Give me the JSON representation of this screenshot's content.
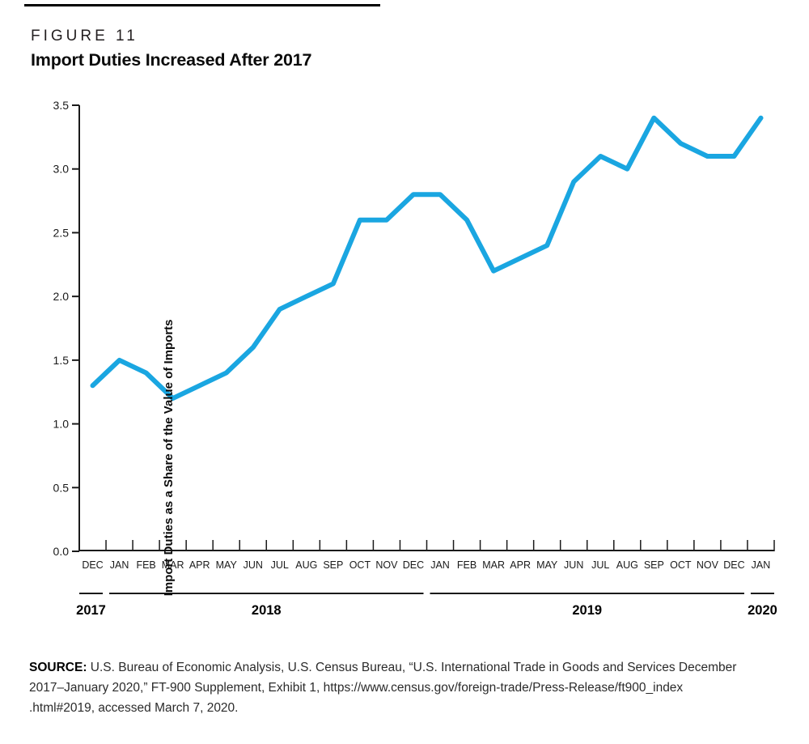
{
  "figure_label": "FIGURE 11",
  "title": "Import Duties Increased After 2017",
  "chart_data": {
    "type": "line",
    "title": "Import Duties Increased After 2017",
    "xlabel": "",
    "ylabel": "Import Duties as a Share of the Value of Imports",
    "ylim": [
      0,
      3.5
    ],
    "ytick_step": 0.5,
    "yticks": [
      "0.0",
      "0.5",
      "1.0",
      "1.5",
      "2.0",
      "2.5",
      "3.0",
      "3.5"
    ],
    "grid": false,
    "legend": false,
    "line_color": "#1aa6e1",
    "axis_color": "#1a1a1a",
    "text_color": "#1a1a1a",
    "categories": [
      "DEC",
      "JAN",
      "FEB",
      "MAR",
      "APR",
      "MAY",
      "JUN",
      "JUL",
      "AUG",
      "SEP",
      "OCT",
      "NOV",
      "DEC",
      "JAN",
      "FEB",
      "MAR",
      "APR",
      "MAY",
      "JUN",
      "JUL",
      "AUG",
      "SEP",
      "OCT",
      "NOV",
      "DEC",
      "JAN"
    ],
    "values": [
      1.3,
      1.5,
      1.4,
      1.2,
      1.3,
      1.4,
      1.6,
      1.9,
      2.0,
      2.1,
      2.6,
      2.6,
      2.8,
      2.8,
      2.6,
      2.2,
      2.3,
      2.4,
      2.9,
      3.1,
      3.0,
      3.4,
      3.2,
      3.1,
      3.1,
      3.4
    ],
    "year_groups": [
      {
        "label": "2017",
        "start": 0,
        "count": 1
      },
      {
        "label": "2018",
        "start": 1,
        "count": 12
      },
      {
        "label": "2019",
        "start": 13,
        "count": 12
      },
      {
        "label": "2020",
        "start": 25,
        "count": 1
      }
    ]
  },
  "source": {
    "label": "SOURCE:",
    "lines": [
      " U.S. Bureau of Economic Analysis, U.S. Census Bureau, “U.S. International Trade in Goods and Services December",
      "2017–January 2020,” FT-900 Supplement, Exhibit 1, https://www.census.gov/foreign-trade/Press-Release/ft900_index",
      ".html#2019, accessed March 7, 2020."
    ]
  }
}
